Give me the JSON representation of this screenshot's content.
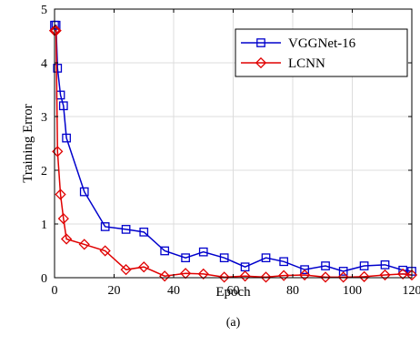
{
  "chart_data": {
    "type": "line",
    "xlabel": "Epoch",
    "ylabel": "Training Error",
    "caption": "(a)",
    "xlim": [
      0,
      120
    ],
    "ylim": [
      0,
      5
    ],
    "xticks": [
      0,
      20,
      40,
      60,
      80,
      100,
      120
    ],
    "yticks": [
      0,
      1,
      2,
      3,
      4,
      5
    ],
    "grid": true,
    "legend_position": "top-right",
    "series": [
      {
        "name": "VGGNet-16",
        "color": "#0000cc",
        "marker": "square",
        "x": [
          0,
          0.5,
          1,
          2,
          3,
          4,
          10,
          17,
          24,
          30,
          37,
          44,
          50,
          57,
          64,
          71,
          77,
          84,
          91,
          97,
          104,
          111,
          117,
          120
        ],
        "y": [
          4.7,
          4.7,
          3.9,
          3.4,
          3.2,
          2.6,
          1.6,
          0.95,
          0.9,
          0.85,
          0.5,
          0.37,
          0.48,
          0.37,
          0.2,
          0.37,
          0.3,
          0.15,
          0.22,
          0.12,
          0.22,
          0.24,
          0.14,
          0.12
        ]
      },
      {
        "name": "LCNN",
        "color": "#e00000",
        "marker": "diamond",
        "x": [
          0,
          0.5,
          1,
          2,
          3,
          4,
          10,
          17,
          24,
          30,
          37,
          44,
          50,
          57,
          64,
          71,
          77,
          84,
          91,
          97,
          104,
          111,
          117,
          120
        ],
        "y": [
          4.6,
          4.6,
          2.35,
          1.55,
          1.1,
          0.72,
          0.62,
          0.5,
          0.15,
          0.2,
          0.03,
          0.08,
          0.07,
          0.01,
          0.03,
          0.01,
          0.04,
          0.05,
          0.01,
          0.01,
          0.02,
          0.05,
          0.07,
          0.05
        ]
      }
    ]
  }
}
